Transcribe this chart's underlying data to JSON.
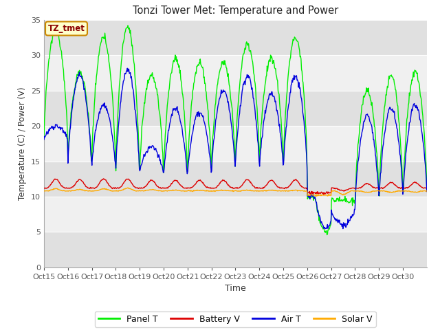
{
  "title": "Tonzi Tower Met: Temperature and Power",
  "xlabel": "Time",
  "ylabel": "Temperature (C) / Power (V)",
  "ylim": [
    0,
    35
  ],
  "yticks": [
    0,
    5,
    10,
    15,
    20,
    25,
    30,
    35
  ],
  "x_tick_labels": [
    "Oct 15",
    "Oct 16",
    "Oct 17",
    "Oct 18",
    "Oct 19",
    "Oct 20",
    "Oct 21",
    "Oct 22",
    "Oct 23",
    "Oct 24",
    "Oct 25",
    "Oct 26",
    "Oct 27",
    "Oct 28",
    "Oct 29",
    "Oct 30"
  ],
  "annotation_text": "TZ_tmet",
  "annotation_color": "#8b0000",
  "annotation_bg": "#ffffcc",
  "annotation_border": "#cc8800",
  "colors": {
    "panel_t": "#00ee00",
    "battery_v": "#dd0000",
    "air_t": "#0000dd",
    "solar_v": "#ffaa00"
  },
  "legend_labels": [
    "Panel T",
    "Battery V",
    "Air T",
    "Solar V"
  ],
  "fig_bg": "#ffffff",
  "plot_bg": "#e8e8e8",
  "band_light": "#f0f0f0",
  "band_dark": "#e0e0e0",
  "num_days": 16,
  "points_per_day": 48,
  "panel_t_peaks": [
    33.5,
    27.5,
    32.5,
    34.0,
    27.2,
    29.5,
    29.0,
    29.0,
    31.5,
    29.5,
    32.5,
    24.5,
    9.5,
    25.0,
    27.0,
    27.5
  ],
  "air_t_peaks": [
    20.0,
    27.2,
    23.0,
    28.0,
    17.0,
    22.5,
    22.0,
    25.0,
    27.0,
    24.5,
    27.0,
    20.5,
    6.0,
    21.5,
    22.5,
    23.0
  ],
  "panel_t_mins": [
    18.5,
    15.0,
    15.0,
    14.0,
    14.0,
    13.5,
    14.0,
    14.5,
    16.0,
    15.0,
    15.0,
    10.0,
    9.5,
    10.0,
    10.5,
    11.0
  ],
  "air_t_mins": [
    18.0,
    15.0,
    14.5,
    14.0,
    13.5,
    13.0,
    13.5,
    14.0,
    15.0,
    14.5,
    14.5,
    10.0,
    8.0,
    10.0,
    10.5,
    11.0
  ],
  "battery_v_base": 11.2,
  "battery_v_spikes": [
    12.5,
    12.4,
    12.5,
    12.5,
    12.3,
    12.3,
    12.3,
    12.3,
    12.4,
    12.3,
    12.4,
    11.8,
    10.8,
    11.8,
    12.0,
    12.0
  ],
  "solar_v_base": 10.8,
  "solar_v_spikes": [
    11.1,
    11.0,
    11.1,
    11.2,
    11.0,
    10.9,
    10.9,
    10.9,
    10.9,
    10.9,
    10.9,
    10.5,
    10.3,
    10.6,
    10.6,
    10.6
  ]
}
